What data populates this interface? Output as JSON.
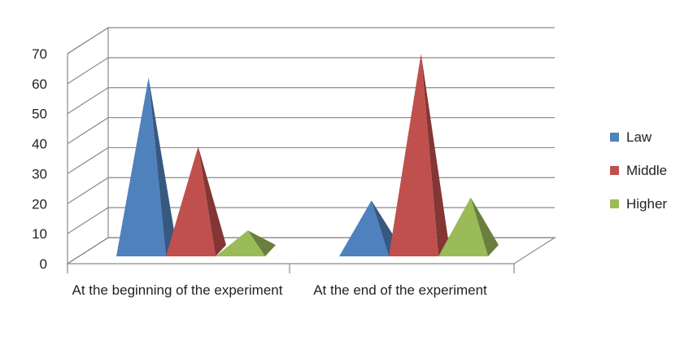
{
  "chart_data": {
    "type": "bar",
    "subtype": "3d-pyramid",
    "title": "",
    "xlabel": "",
    "ylabel": "",
    "ylim": [
      0,
      70
    ],
    "yticks": [
      0,
      10,
      20,
      30,
      40,
      50,
      60,
      70
    ],
    "grid": true,
    "legend_position": "right",
    "categories": [
      "At the beginning of the experiment",
      "At the end of the experiment"
    ],
    "series": [
      {
        "name": "Law",
        "color": "#4f81bd",
        "values": [
          61,
          20
        ]
      },
      {
        "name": "Middle",
        "color": "#c0504d",
        "values": [
          38,
          69
        ]
      },
      {
        "name": "Higher",
        "color": "#9bbb59",
        "values": [
          10,
          21
        ]
      }
    ]
  }
}
